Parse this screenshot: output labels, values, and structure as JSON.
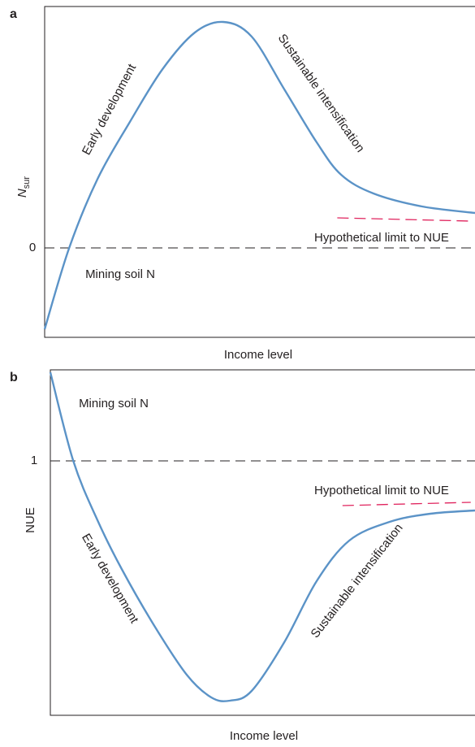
{
  "chart_data": [
    {
      "type": "line",
      "panel": "a",
      "y_label": "N",
      "y_label_sub": "sur",
      "x_label": "Income level",
      "x": [
        0,
        5.7,
        12.3,
        19.8,
        27.4,
        34.9,
        41.5,
        48.1,
        55.7,
        63.2,
        68.9,
        76.4,
        87.7,
        100
      ],
      "values": [
        -1.0,
        0,
        0.85,
        1.55,
        2.2,
        2.65,
        2.78,
        2.6,
        1.95,
        1.3,
        0.9,
        0.67,
        0.51,
        0.43
      ],
      "color": "#5b93c7",
      "limit": {
        "x": [
          68,
          99
        ],
        "values": [
          0.37,
          0.33
        ],
        "color": "#e0245e"
      },
      "xlim": [
        0,
        100
      ],
      "ylim": [
        -1.1,
        2.97
      ],
      "yticks": [
        0
      ],
      "annotations": [
        "Early development",
        "Sustainable intensification",
        "Hypothetical limit to NUE",
        "Mining soil N"
      ]
    },
    {
      "type": "line",
      "panel": "b",
      "y_label": "NUE",
      "x_label": "Income level",
      "x": [
        0,
        5.4,
        11.1,
        16.8,
        24.5,
        32.1,
        37.9,
        42.3,
        47.4,
        55.1,
        62.7,
        70.4,
        79.9,
        89.5,
        100
      ],
      "values": [
        1.545,
        1.0,
        0.635,
        0.335,
        -0.015,
        -0.315,
        -0.455,
        -0.475,
        -0.415,
        -0.115,
        0.26,
        0.51,
        0.625,
        0.675,
        0.695
      ],
      "color": "#5b93c7",
      "limit": {
        "x": [
          68.8,
          99
        ],
        "values": [
          0.725,
          0.745
        ],
        "color": "#e0245e"
      },
      "xlim": [
        0,
        100
      ],
      "ylim": [
        -0.565,
        1.56
      ],
      "yticks": [
        1
      ],
      "annotations": [
        "Mining soil N",
        "Hypothetical limit to NUE",
        "Early development",
        "Sustainable intensification"
      ]
    }
  ]
}
